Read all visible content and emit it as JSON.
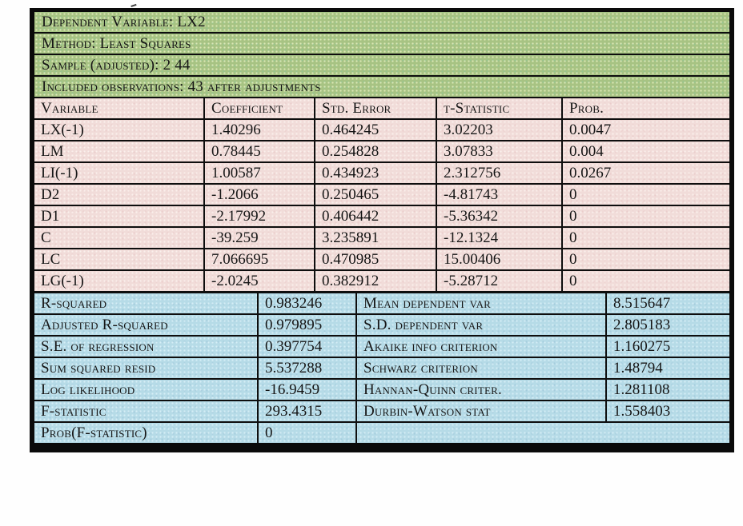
{
  "colors": {
    "header_section_bg": "#a7c383",
    "coefficients_section_bg": "#f1dcd9",
    "statistics_section_bg": "#b6dbe7",
    "border": "#0a0a0a",
    "text": "#161616",
    "page_background": "#ffffff"
  },
  "info_rows": [
    {
      "text": "Dependent Variable: LX2"
    },
    {
      "text": "Method: Least Squares"
    },
    {
      "text": "Sample (adjusted): 2 44"
    },
    {
      "text": "Included observations: 43 after adjustments"
    }
  ],
  "coef_table": {
    "headers": {
      "variable": "Variable",
      "coefficient": "Coefficient",
      "std_error": "Std. Error",
      "t_statistic": "t-Statistic",
      "prob": "Prob."
    },
    "rows": [
      {
        "variable": "LX(-1)",
        "coefficient": "1.40296",
        "std_error": "0.464245",
        "t_statistic": "3.02203",
        "prob": "0.0047"
      },
      {
        "variable": "LM",
        "coefficient": "0.78445",
        "std_error": "0.254828",
        "t_statistic": "3.07833",
        "prob": "0.004"
      },
      {
        "variable": "LI(-1)",
        "coefficient": "1.00587",
        "std_error": "0.434923",
        "t_statistic": "2.312756",
        "prob": "0.0267"
      },
      {
        "variable": "D2",
        "coefficient": "-1.2066",
        "std_error": "0.250465",
        "t_statistic": "-4.81743",
        "prob": "0"
      },
      {
        "variable": "D1",
        "coefficient": "-2.17992",
        "std_error": "0.406442",
        "t_statistic": "-5.36342",
        "prob": "0"
      },
      {
        "variable": "C",
        "coefficient": "-39.259",
        "std_error": "3.235891",
        "t_statistic": "-12.1324",
        "prob": "0"
      },
      {
        "variable": "LC",
        "coefficient": "7.066695",
        "std_error": "0.470985",
        "t_statistic": "15.00406",
        "prob": "0"
      },
      {
        "variable": "LG(-1)",
        "coefficient": "-2.0245",
        "std_error": "0.382912",
        "t_statistic": "-5.28712",
        "prob": "0"
      }
    ]
  },
  "stats_table": {
    "rows": [
      {
        "left_label": "R-squared",
        "left_value": "0.983246",
        "right_label": "Mean dependent var",
        "right_value": "8.515647"
      },
      {
        "left_label": "Adjusted R-squared",
        "left_value": "0.979895",
        "right_label": "S.D. dependent var",
        "right_value": "2.805183"
      },
      {
        "left_label": "S.E. of regression",
        "left_value": "0.397754",
        "right_label": "Akaike info criterion",
        "right_value": "1.160275"
      },
      {
        "left_label": "Sum squared resid",
        "left_value": "5.537288",
        "right_label": "Schwarz criterion",
        "right_value": "1.48794"
      },
      {
        "left_label": "Log likelihood",
        "left_value": "-16.9459",
        "right_label": "Hannan-Quinn criter.",
        "right_value": "1.281108"
      },
      {
        "left_label": "F-statistic",
        "left_value": "293.4315",
        "right_label": "Durbin-Watson stat",
        "right_value": "1.558403"
      },
      {
        "left_label": "Prob(F-statistic)",
        "left_value": "0",
        "right_label": "",
        "right_value": ""
      }
    ]
  }
}
